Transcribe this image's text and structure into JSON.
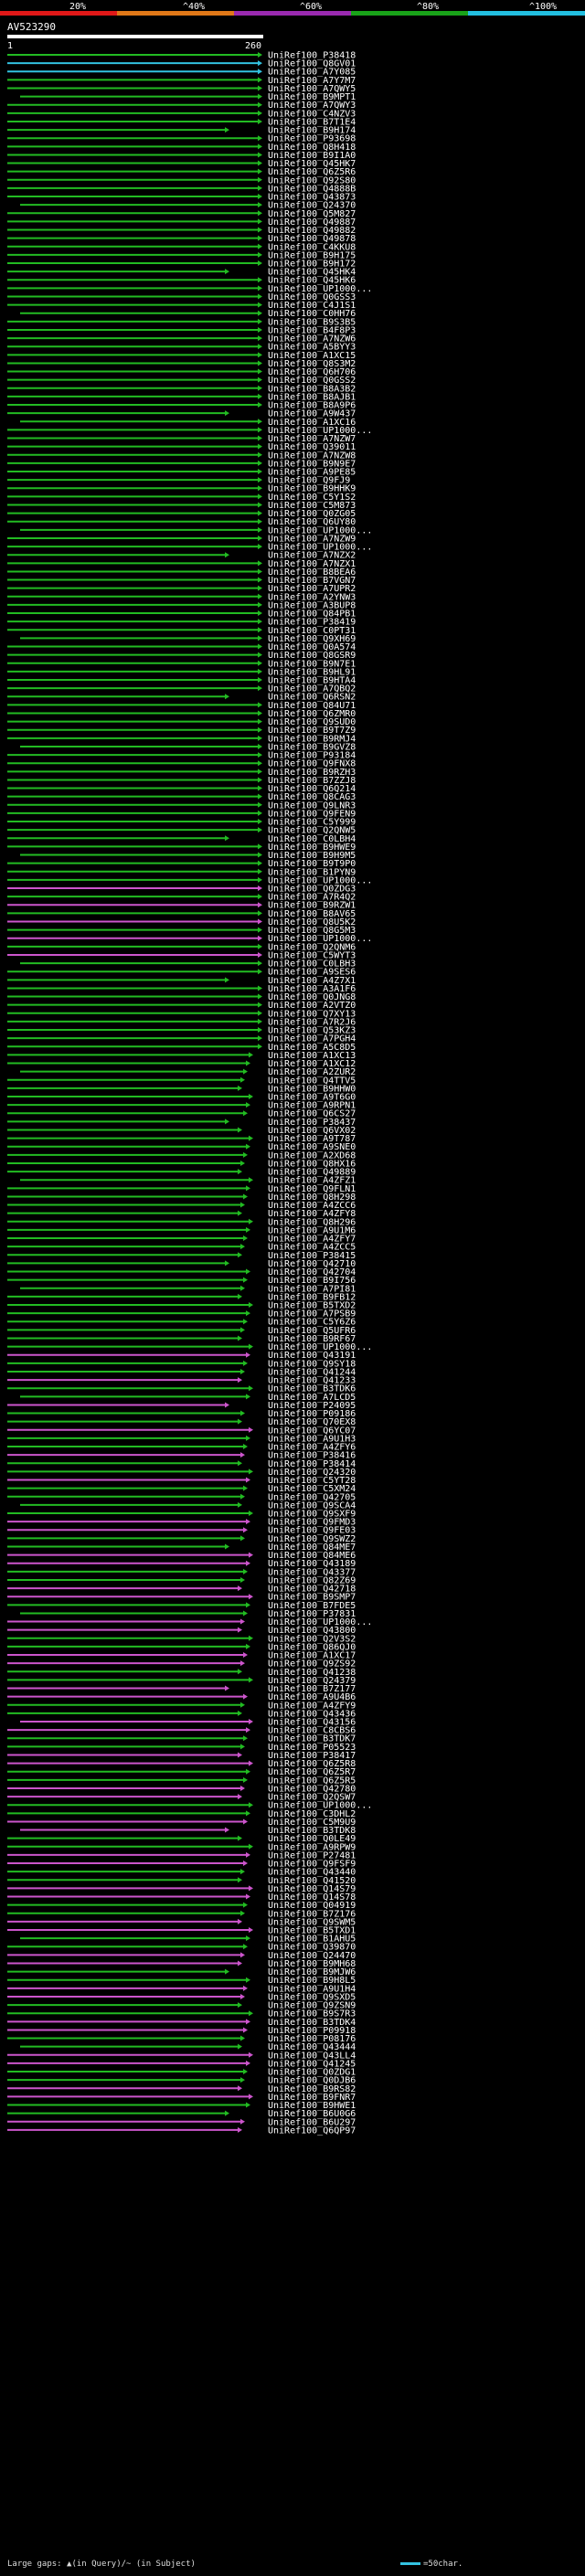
{
  "scale": {
    "labels": [
      "20%",
      "^40%",
      "^60%",
      "^80%",
      "^100%"
    ],
    "colors": [
      "#e01818",
      "#e07818",
      "#9a2ab0",
      "#19a319",
      "#22bfe0"
    ]
  },
  "query": {
    "title": "AV523290",
    "start": "1",
    "end": "260"
  },
  "colors": {
    "cyan": "#33c2e0",
    "green": "#22bb22",
    "magenta": "#cc55cc",
    "gap": "#000000"
  },
  "hits": [
    "UniRef100_P38418",
    "UniRef100_Q8GV01",
    "UniRef100_A7Y085",
    "UniRef100_A7Y7M7",
    "UniRef100_A7QWY5",
    "UniRef100_B9MPT1",
    "UniRef100_A7QWY3",
    "UniRef100_C4NZV3",
    "UniRef100_B7T1E4",
    "UniRef100_B9H174",
    "UniRef100_P93698",
    "UniRef100_Q8H418",
    "UniRef100_B9I1A0",
    "UniRef100_Q45HK7",
    "UniRef100_Q6Z5R6",
    "UniRef100_Q92S80",
    "UniRef100_Q4888B",
    "UniRef100_Q43873",
    "UniRef100_Q24370",
    "UniRef100_Q5M827",
    "UniRef100_Q49887",
    "UniRef100_Q49882",
    "UniRef100_Q49878",
    "UniRef100_C4KKU8",
    "UniRef100_B9H175",
    "UniRef100_B9H172",
    "UniRef100_Q45HK4",
    "UniRef100_Q45HK6",
    "UniRef100_UP1000...",
    "UniRef100_Q0GSS3",
    "UniRef100_C4J1S1",
    "UniRef100_C0HH76",
    "UniRef100_B9S3B5",
    "UniRef100_B4F8P3",
    "UniRef100_A7NZW6",
    "UniRef100_A5BYY3",
    "UniRef100_A1XC15",
    "UniRef100_Q8S3M2",
    "UniRef100_Q6H706",
    "UniRef100_Q0GSS2",
    "UniRef100_B8A3B2",
    "UniRef100_B8AJB1",
    "UniRef100_B8A9P6",
    "UniRef100_A9W437",
    "UniRef100_A1XC16",
    "UniRef100_UP1000...",
    "UniRef100_A7NZW7",
    "UniRef100_Q39011",
    "UniRef100_A7NZW8",
    "UniRef100_B9N9E7",
    "UniRef100_A9PE85",
    "UniRef100_Q9FJ9",
    "UniRef100_B9HHK9",
    "UniRef100_C5Y1S2",
    "UniRef100_C5M873",
    "UniRef100_Q0ZG05",
    "UniRef100_Q6UY80",
    "UniRef100_UP1000...",
    "UniRef100_A7NZW9",
    "UniRef100_UP1000...",
    "UniRef100_A7NZX2",
    "UniRef100_A7NZX1",
    "UniRef100_B8BEA6",
    "UniRef100_B7VGN7",
    "UniRef100_A7UPR2",
    "UniRef100_A2YNW3",
    "UniRef100_A3BUP8",
    "UniRef100_Q84PB1",
    "UniRef100_P38419",
    "UniRef100_C0PT31",
    "UniRef100_Q9XH69",
    "UniRef100_Q0A574",
    "UniRef100_Q8GSR9",
    "UniRef100_B9N7E1",
    "UniRef100_B9HL91",
    "UniRef100_B9HTA4",
    "UniRef100_A7QBQ2",
    "UniRef100_Q6RSN2",
    "UniRef100_Q84U71",
    "UniRef100_Q6ZMR0",
    "UniRef100_Q9SUD0",
    "UniRef100_B9T7Z9",
    "UniRef100_B9RMJ4",
    "UniRef100_B9GVZ8",
    "UniRef100_P93184",
    "UniRef100_Q9FNX8",
    "UniRef100_B9RZH3",
    "UniRef100_B7ZZJ8",
    "UniRef100_Q6Q214",
    "UniRef100_Q8CAG3",
    "UniRef100_Q9LNR3",
    "UniRef100_Q9FEN9",
    "UniRef100_C5Y999",
    "UniRef100_Q2QNW5",
    "UniRef100_C0LBH4",
    "UniRef100_B9HWE9",
    "UniRef100_B9H9M5",
    "UniRef100_B9T9P0",
    "UniRef100_B1PYN9",
    "UniRef100_UP1000...",
    "UniRef100_Q0ZDG3",
    "UniRef100_A7R4Q2",
    "UniRef100_B9RZW1",
    "UniRef100_B8AV65",
    "UniRef100_Q8U5K2",
    "UniRef100_Q8G5M3",
    "UniRef100_UP1000...",
    "UniRef100_Q2QNM6",
    "UniRef100_C5WYT3",
    "UniRef100_C0LBH3",
    "UniRef100_A9SES6",
    "UniRef100_A4Z7X1",
    "UniRef100_A3A1F6",
    "UniRef100_Q0JNG8",
    "UniRef100_A2VTZ0",
    "UniRef100_Q7XY13",
    "UniRef100_A7R2J6",
    "UniRef100_Q53KZ3",
    "UniRef100_A7PGH4",
    "UniRef100_A5C8D5",
    "UniRef100_A1XC13",
    "UniRef100_A1XC12",
    "UniRef100_A2ZUR2",
    "UniRef100_Q4TTV5",
    "UniRef100_B9HHW0",
    "UniRef100_A9T6G0",
    "UniRef100_A9RPN1",
    "UniRef100_Q6CS27",
    "UniRef100_P38437",
    "UniRef100_Q6VX02",
    "UniRef100_A9T787",
    "UniRef100_A9SNE0",
    "UniRef100_A2XD68",
    "UniRef100_Q8HX16",
    "UniRef100_Q49889",
    "UniRef100_A4ZFZ1",
    "UniRef100_Q9FLN1",
    "UniRef100_Q8H298",
    "UniRef100_A4ZCC6",
    "UniRef100_A4ZFY8",
    "UniRef100_Q8H296",
    "UniRef100_A9U1M6",
    "UniRef100_A4ZFY7",
    "UniRef100_A4ZCC5",
    "UniRef100_P38415",
    "UniRef100_Q42710",
    "UniRef100_Q42704",
    "UniRef100_B9I756",
    "UniRef100_A7PI81",
    "UniRef100_B9FB12",
    "UniRef100_B5TXD2",
    "UniRef100_A7PSB9",
    "UniRef100_C5Y6Z6",
    "UniRef100_Q5UFR6",
    "UniRef100_B9RF67",
    "UniRef100_UP1000...",
    "UniRef100_Q43191",
    "UniRef100_Q9SY18",
    "UniRef100_Q41244",
    "UniRef100_Q41233",
    "UniRef100_B3TDK6",
    "UniRef100_A7LCD5",
    "UniRef100_P24095",
    "UniRef100_P09186",
    "UniRef100_Q70EX8",
    "UniRef100_Q6YC07",
    "UniRef100_A9U1H3",
    "UniRef100_A4ZFY6",
    "UniRef100_P38416",
    "UniRef100_P38414",
    "UniRef100_Q24320",
    "UniRef100_C5YT28",
    "UniRef100_C5XM24",
    "UniRef100_Q42705",
    "UniRef100_Q9SCA4",
    "UniRef100_Q9SXF9",
    "UniRef100_Q9FMD3",
    "UniRef100_Q9FE03",
    "UniRef100_Q9SWZ2",
    "UniRef100_Q84ME7",
    "UniRef100_Q84ME6",
    "UniRef100_Q43189",
    "UniRef100_Q43377",
    "UniRef100_Q82Z69",
    "UniRef100_Q42718",
    "UniRef100_B9SMP7",
    "UniRef100_B7FDE5",
    "UniRef100_P37831",
    "UniRef100_UP1000...",
    "UniRef100_Q43800",
    "UniRef100_Q2V3S2",
    "UniRef100_Q86QJ0",
    "UniRef100_A1XC17",
    "UniRef100_Q9ZS92",
    "UniRef100_Q41238",
    "UniRef100_Q24379",
    "UniRef100_B7Z177",
    "UniRef100_A9U4B6",
    "UniRef100_A4ZFY9",
    "UniRef100_Q43436",
    "UniRef100_Q43156",
    "UniRef100_C8CBS6",
    "UniRef100_B3TDK7",
    "UniRef100_P05523",
    "UniRef100_P38417",
    "UniRef100_Q6Z5R8",
    "UniRef100_Q6Z5R7",
    "UniRef100_Q6Z5R5",
    "UniRef100_Q42780",
    "UniRef100_Q2QSW7",
    "UniRef100_UP1000...",
    "UniRef100_C3DHL2",
    "UniRef100_C5M9U9",
    "UniRef100_B3TDK8",
    "UniRef100_Q0LE49",
    "UniRef100_A9RPW9",
    "UniRef100_P27481",
    "UniRef100_Q9FSF9",
    "UniRef100_Q43440",
    "UniRef100_Q41520",
    "UniRef100_Q14S79",
    "UniRef100_Q14S78",
    "UniRef100_Q04919",
    "UniRef100_B7Z176",
    "UniRef100_Q9SWM5",
    "UniRef100_B5TXD1",
    "UniRef100_B1AHU5",
    "UniRef100_Q39870",
    "UniRef100_Q24470",
    "UniRef100_B9MH68",
    "UniRef100_B9MJW6",
    "UniRef100_B9H8L5",
    "UniRef100_A9U1H4",
    "UniRef100_Q9SXD5",
    "UniRef100_Q9ZSN9",
    "UniRef100_B9S7R3",
    "UniRef100_B3TDK4",
    "UniRef100_P09918",
    "UniRef100_P08176",
    "UniRef100_Q43444",
    "UniRef100_Q43LL4",
    "UniRef100_Q41245",
    "UniRef100_Q0ZDG1",
    "UniRef100_Q0DJB6",
    "UniRef100_B9RS82",
    "UniRef100_B9FNR7",
    "UniRef100_B9HWE1",
    "UniRef100_B6U0G6",
    "UniRef100_B6U297",
    "UniRef100_Q6QP97"
  ],
  "footer": {
    "large_gaps": "Large gaps: ▲(in Query)/~ (in Subject)",
    "legend": "=50char."
  }
}
